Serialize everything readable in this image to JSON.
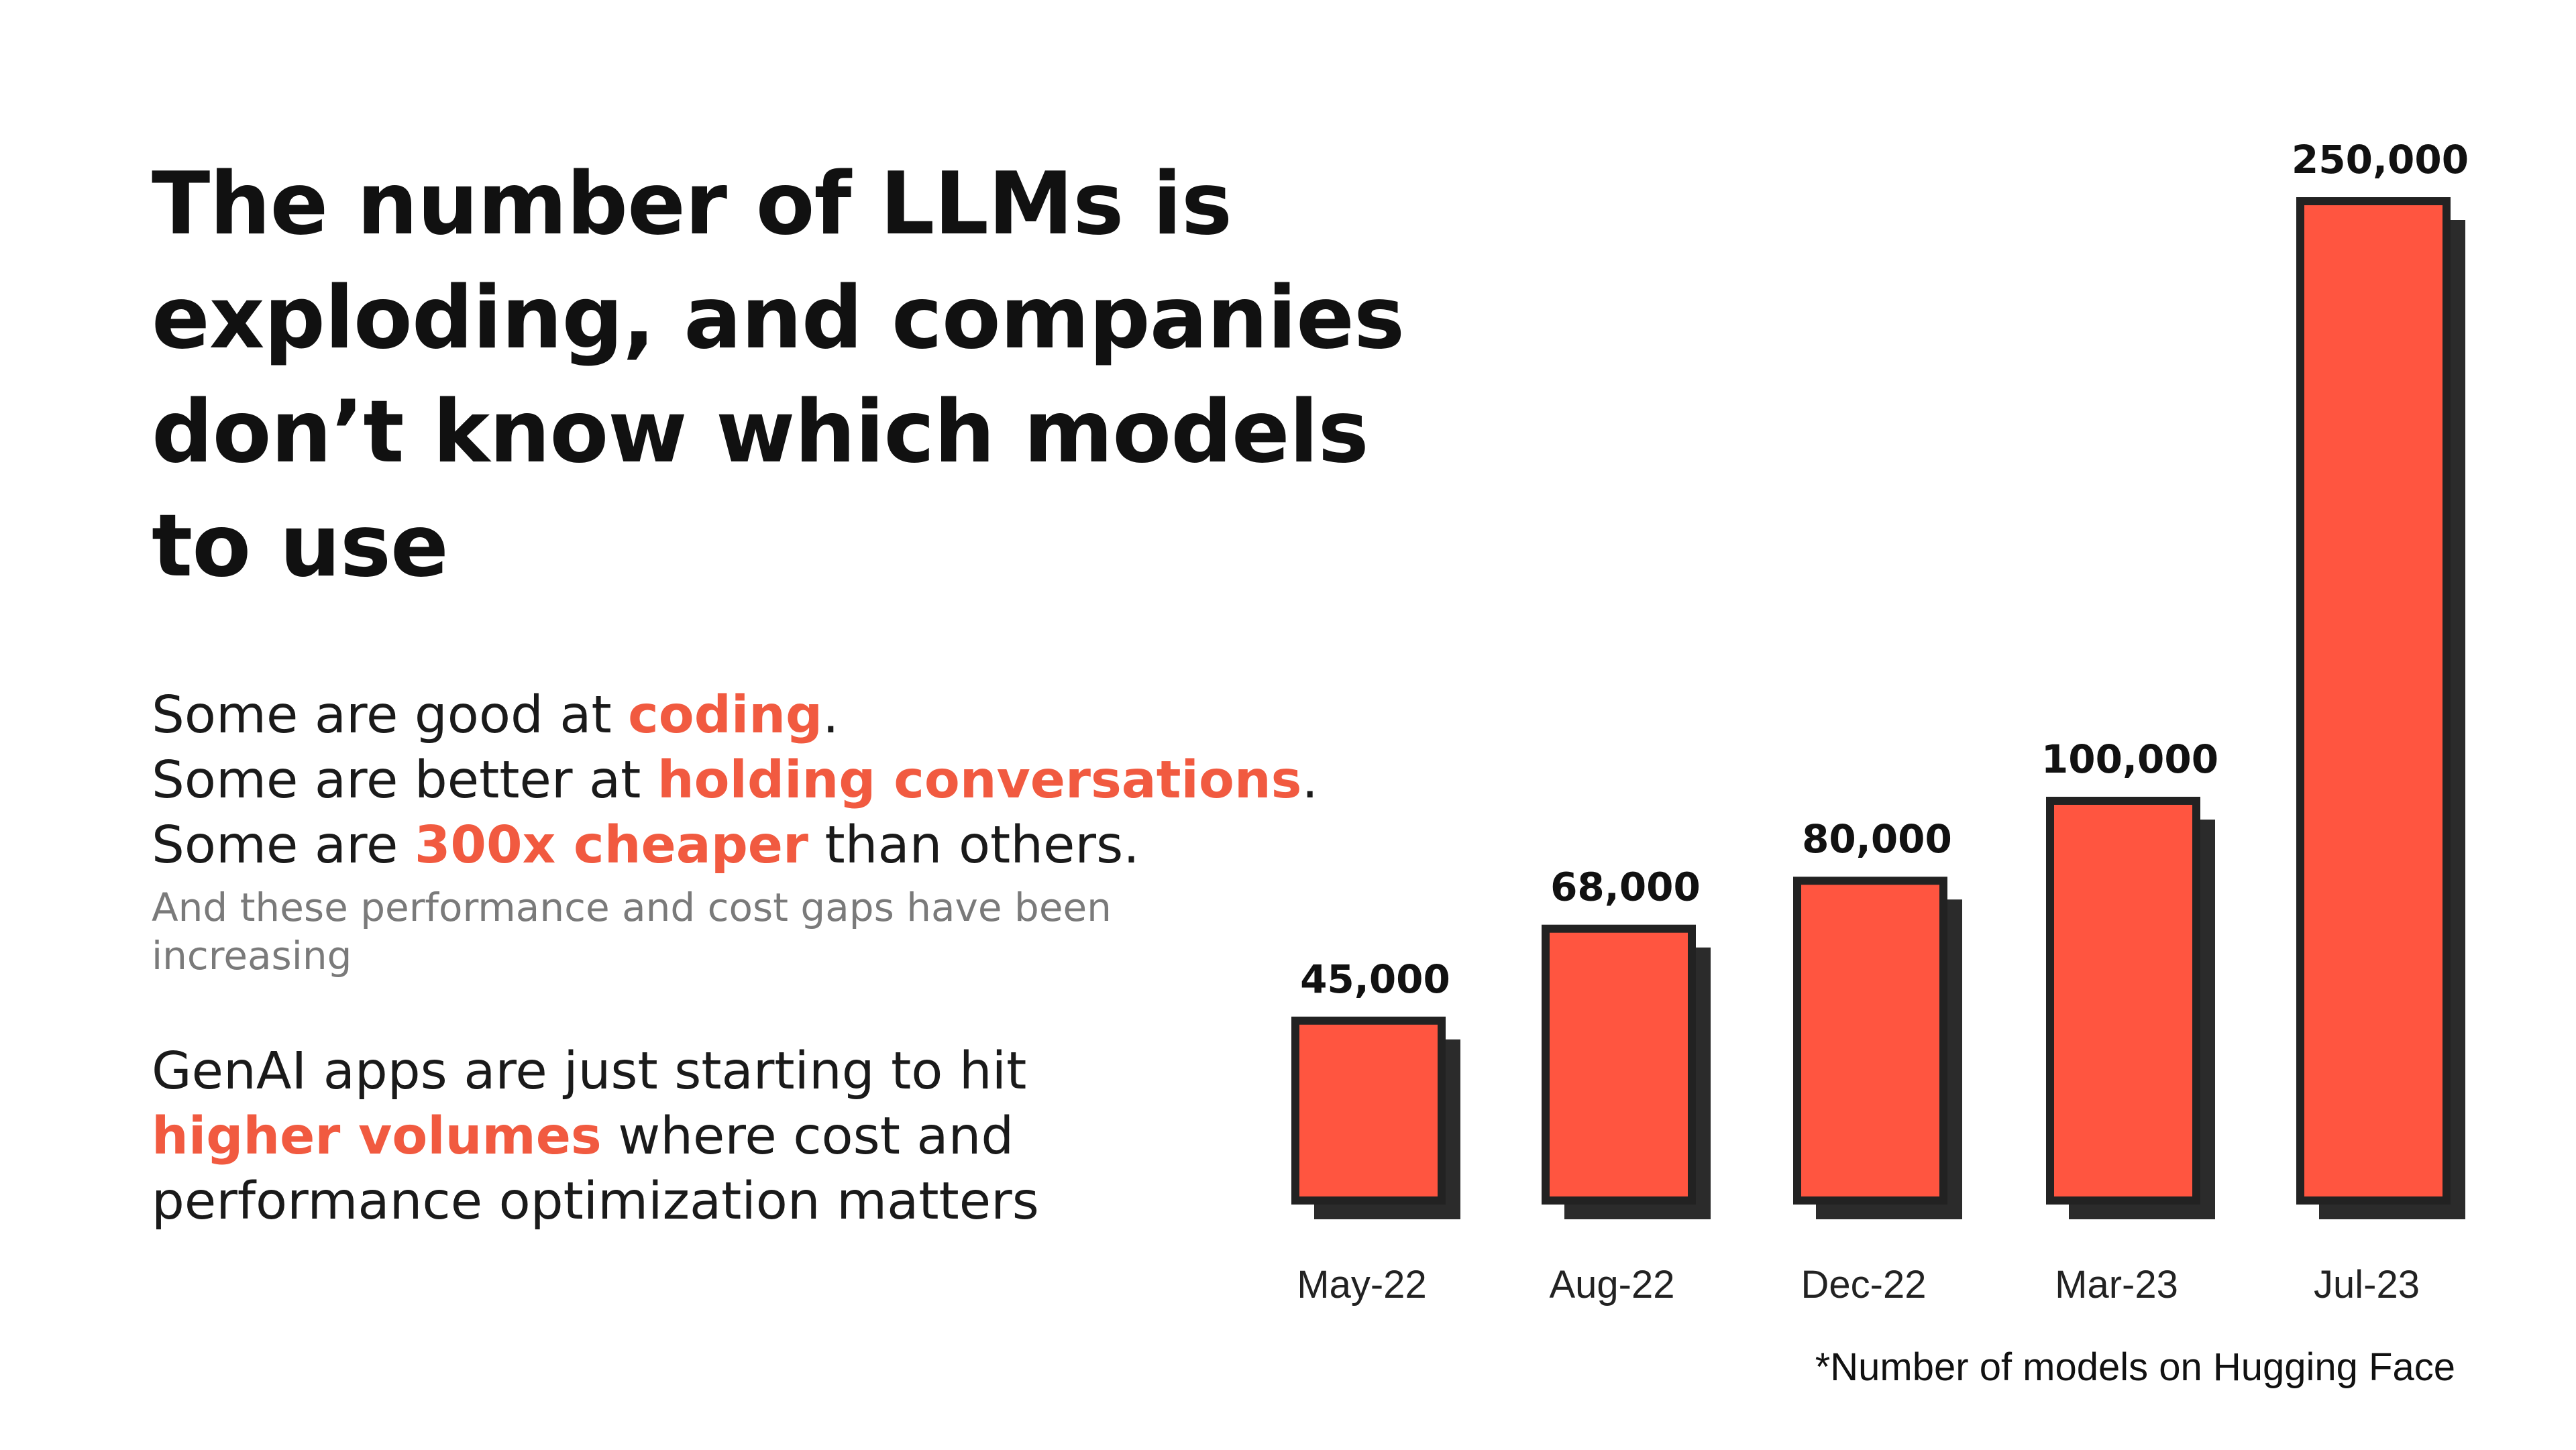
{
  "headline": {
    "lines": [
      "The number of LLMs is",
      "exploding, and companies",
      "don’t know which models",
      "to use"
    ]
  },
  "points": {
    "line1": {
      "before": "Some are good at ",
      "highlight": "coding",
      "after": "."
    },
    "line2": {
      "before": "Some are better at ",
      "highlight": "holding conversations",
      "after": "."
    },
    "line3": {
      "before": "Some are ",
      "highlight": "300x cheaper",
      "after": " than others."
    },
    "note": "And these performance and cost gaps have been increasing"
  },
  "genai": {
    "line1": "GenAI apps are just starting to hit",
    "line2_highlight": "higher volumes",
    "line2_after": " where cost and",
    "line3": "performance optimization matters"
  },
  "footnote": "*Number of models on Hugging Face",
  "colors": {
    "accent": "#f15a40",
    "bar_fill": "#ff5540",
    "bar_outline": "#222222",
    "bar_shadow": "#2b2b2b"
  },
  "chart_data": {
    "type": "bar",
    "categories": [
      "May-22",
      "Aug-22",
      "Dec-22",
      "Mar-23",
      "Jul-23"
    ],
    "values": [
      45000,
      68000,
      80000,
      100000,
      250000
    ],
    "value_labels": [
      "45,000",
      "68,000",
      "80,000",
      "100,000",
      "250,000"
    ],
    "title": "",
    "xlabel": "",
    "ylabel": "",
    "grid": false
  }
}
